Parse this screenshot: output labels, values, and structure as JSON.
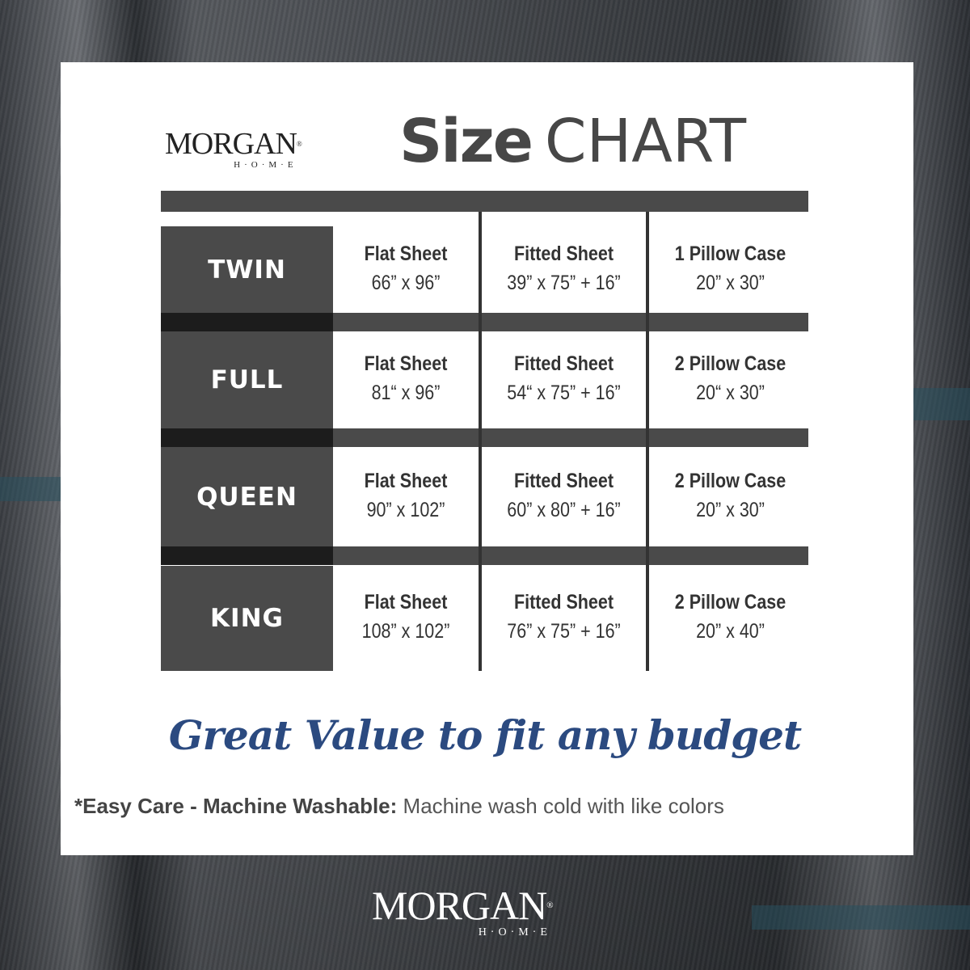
{
  "logo": {
    "name": "MORGAN",
    "sub": "H·O·M·E",
    "mark": "®"
  },
  "title": {
    "bold": "Size",
    "regular": "CHART"
  },
  "rows": [
    {
      "size": "TWIN",
      "flat": {
        "label": "Flat Sheet",
        "dim": "66” x 96”"
      },
      "fitted": {
        "label": "Fitted Sheet",
        "dim": "39” x 75” + 16”"
      },
      "pillow": {
        "label": "1 Pillow Case",
        "dim": "20” x 30”"
      }
    },
    {
      "size": "FULL",
      "flat": {
        "label": "Flat Sheet",
        "dim": "81“ x 96”"
      },
      "fitted": {
        "label": "Fitted Sheet",
        "dim": "54“ x 75” + 16”"
      },
      "pillow": {
        "label": "2 Pillow Case",
        "dim": "20“ x 30”"
      }
    },
    {
      "size": "QUEEN",
      "flat": {
        "label": "Flat Sheet",
        "dim": "90” x 102”"
      },
      "fitted": {
        "label": "Fitted Sheet",
        "dim": "60” x 80” + 16”"
      },
      "pillow": {
        "label": "2 Pillow Case",
        "dim": "20” x 30”"
      }
    },
    {
      "size": "KING",
      "flat": {
        "label": "Flat Sheet",
        "dim": "108” x 102”"
      },
      "fitted": {
        "label": "Fitted Sheet",
        "dim": "76” x 75” + 16”"
      },
      "pillow": {
        "label": "2 Pillow Case",
        "dim": "20” x 40”"
      }
    }
  ],
  "tagline": "Great Value to fit any budget",
  "care": {
    "bold": "*Easy Care - Machine Washable:",
    "text": "Machine wash cold with like colors"
  },
  "colors": {
    "dark": "#4a4a4a",
    "tagline": "#2b4a80"
  }
}
